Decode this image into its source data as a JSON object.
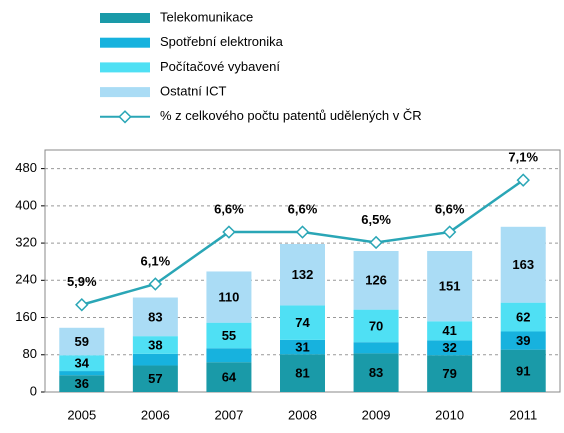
{
  "chart_data": {
    "type": "bar",
    "stacked": true,
    "categories": [
      "2005",
      "2006",
      "2007",
      "2008",
      "2009",
      "2010",
      "2011"
    ],
    "series": [
      {
        "name": "Telekomunikace",
        "color": "#1a9aa8",
        "values": [
          36,
          57,
          64,
          81,
          83,
          79,
          91
        ]
      },
      {
        "name": "Spotřební elektronika",
        "color": "#17b2de",
        "values": [
          9,
          25,
          30,
          31,
          24,
          32,
          39
        ]
      },
      {
        "name": "Počítačové vybavení",
        "color": "#4fe0f4",
        "values": [
          34,
          38,
          55,
          74,
          70,
          41,
          62
        ]
      },
      {
        "name": "Ostatní ICT",
        "color": "#aadcf5",
        "values": [
          59,
          83,
          110,
          132,
          126,
          151,
          163
        ]
      },
      {
        "name": "% z celkového počtu patentů udělených v ČR",
        "color": "#2aa6b6",
        "type": "line",
        "axis": "y2",
        "values": [
          5.9,
          6.1,
          6.6,
          6.6,
          6.5,
          6.6,
          7.1
        ],
        "value_labels": [
          "5,9%",
          "6,1%",
          "6,6%",
          "6,6%",
          "6,5%",
          "6,6%",
          "7,1%"
        ]
      }
    ],
    "ylim": [
      0,
      520
    ],
    "yticks": [
      0,
      80,
      160,
      240,
      320,
      400,
      480
    ],
    "y2lim": [
      5.06,
      7.39
    ],
    "grid": true,
    "legend": "top"
  }
}
